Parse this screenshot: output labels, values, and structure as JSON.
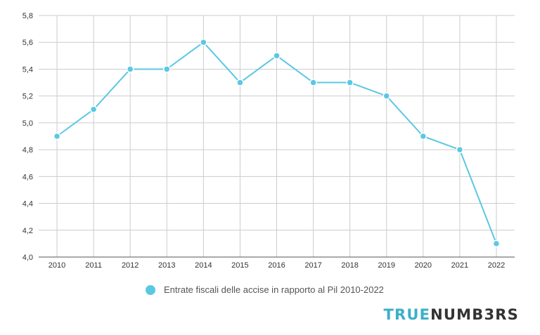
{
  "chart_data": {
    "type": "line",
    "x": [
      "2010",
      "2011",
      "2012",
      "2013",
      "2014",
      "2015",
      "2016",
      "2017",
      "2018",
      "2019",
      "2020",
      "2021",
      "2022"
    ],
    "series": [
      {
        "name": "Entrate fiscali delle accise in rapporto al Pil 2010-2022",
        "values": [
          4.9,
          5.1,
          5.4,
          5.4,
          5.6,
          5.3,
          5.5,
          5.3,
          5.3,
          5.2,
          4.9,
          4.8,
          4.1
        ],
        "color": "#5BC8E3"
      }
    ],
    "ylim": [
      4.0,
      5.8
    ],
    "yticks": [
      "4,0",
      "4,2",
      "4,4",
      "4,6",
      "4,8",
      "5,0",
      "5,2",
      "5,4",
      "5,6",
      "5,8"
    ],
    "grid": true,
    "legend_position": "bottom-center"
  },
  "legend": {
    "label": "Entrate fiscali delle accise in rapporto al Pil 2010-2022",
    "color": "#5BC8E3"
  },
  "logo": {
    "part1": "TRUE",
    "part2": "NUMB3RS",
    "color1": "#3BAFC9",
    "color2": "#333333"
  }
}
